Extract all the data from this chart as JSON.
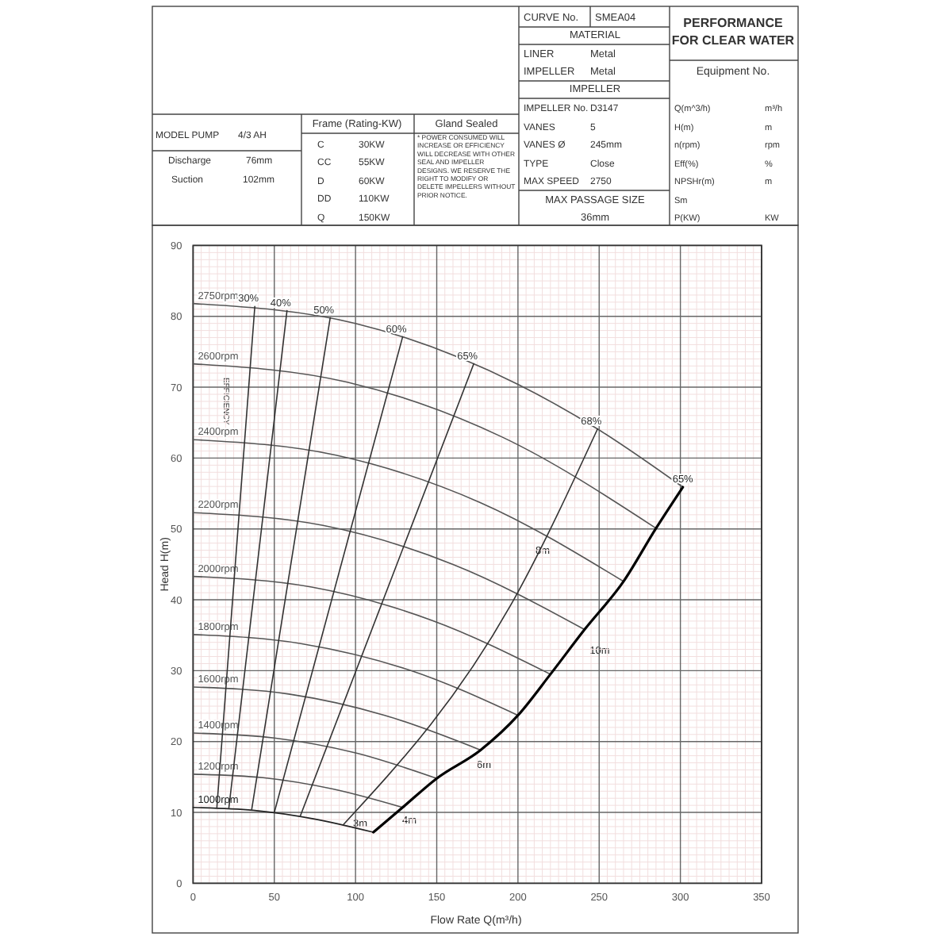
{
  "chart_data": {
    "type": "line",
    "title": "PERFORMANCE FOR CLEAR WATER",
    "xlabel": "Flow Rate Q(m³/h)",
    "ylabel": "Head H(m)",
    "xlim": [
      0,
      350
    ],
    "xticks": [
      0,
      50,
      100,
      150,
      200,
      250,
      300,
      350
    ],
    "ylim": [
      0,
      90
    ],
    "yticks": [
      0,
      10,
      20,
      30,
      40,
      50,
      60,
      70,
      80,
      90
    ],
    "grid": true,
    "series": [
      {
        "name": "2750rpm",
        "color": "#555555",
        "x": [
          0,
          100,
          200,
          249,
          301.5
        ],
        "values": [
          81.8,
          79,
          70.4,
          64.1,
          55.9
        ]
      },
      {
        "name": "2600rpm",
        "color": "#555555",
        "x": [
          0,
          95,
          190,
          285
        ],
        "values": [
          73.3,
          70.7,
          63,
          50.1
        ]
      },
      {
        "name": "2400rpm",
        "color": "#555555",
        "x": [
          0,
          88,
          177,
          265
        ],
        "values": [
          62.6,
          60.4,
          53.7,
          42.6
        ]
      },
      {
        "name": "2200rpm",
        "color": "#555555",
        "x": [
          0,
          80,
          160,
          241
        ],
        "values": [
          52.3,
          50.5,
          45,
          35.8
        ]
      },
      {
        "name": "2000rpm",
        "color": "#555555",
        "x": [
          0,
          73,
          147,
          220
        ],
        "values": [
          43.3,
          41.8,
          37.1,
          29.5
        ]
      },
      {
        "name": "1800rpm",
        "color": "#555555",
        "x": [
          0,
          67,
          133,
          200
        ],
        "values": [
          35.1,
          33.8,
          30.1,
          23.7
        ]
      },
      {
        "name": "1600rpm",
        "color": "#555555",
        "x": [
          0,
          59,
          118,
          177
        ],
        "values": [
          27.7,
          26.7,
          23.7,
          18.8
        ]
      },
      {
        "name": "1400rpm",
        "color": "#555555",
        "x": [
          0,
          50,
          100,
          150
        ],
        "values": [
          21.2,
          20.5,
          18.4,
          14.8
        ]
      },
      {
        "name": "1200rpm",
        "color": "#555555",
        "x": [
          0,
          43,
          86,
          129
        ],
        "values": [
          15.4,
          14.9,
          13.3,
          10.7
        ]
      },
      {
        "name": "1000rpm",
        "color": "#222222",
        "x": [
          0,
          37,
          74,
          111
        ],
        "values": [
          10.7,
          10.3,
          9.1,
          7.2
        ]
      },
      {
        "name": "30%",
        "color": "#333333",
        "x": [
          14.6,
          38
        ],
        "values": [
          10.6,
          81.4
        ]
      },
      {
        "name": "40%",
        "color": "#333333",
        "x": [
          22,
          57.8
        ],
        "values": [
          10.6,
          80.8
        ]
      },
      {
        "name": "50%",
        "color": "#333333",
        "x": [
          36,
          84.4
        ],
        "values": [
          10.3,
          79.8
        ]
      },
      {
        "name": "60%",
        "color": "#333333",
        "x": [
          50,
          129
        ],
        "values": [
          10,
          77.1
        ]
      },
      {
        "name": "65%",
        "color": "#333333",
        "x": [
          66,
          172.8
        ],
        "values": [
          9.5,
          73.3
        ]
      },
      {
        "name": "68%",
        "color": "#333333",
        "x": [
          92.6,
          199.8,
          249
        ],
        "values": [
          8.3,
          41,
          64.1
        ]
      },
      {
        "color": "#000000",
        "x": [
          111,
          129,
          150,
          177,
          200,
          220,
          241,
          265,
          285,
          301.5
        ],
        "values": [
          7.2,
          10.7,
          14.8,
          18.8,
          23.7,
          29.5,
          35.8,
          42.6,
          50.1,
          55.9
        ]
      }
    ],
    "annotations": [
      "CURVE No.",
      "SMEA04",
      "MATERIAL",
      "LINER",
      "Metal",
      "IMPELLER",
      "Metal",
      "IMPELLER",
      "IMPELLER No.",
      "D3147",
      "VANES",
      "5",
      "VANES Ø",
      "245mm",
      "TYPE",
      "Close",
      "MAX SPEED",
      "2750",
      "MAX PASSAGE SIZE",
      "36mm",
      "Equipment No.",
      "Q(m^3/h)",
      "m³/h",
      "H(m)",
      "m",
      "n(rpm)",
      "rpm",
      "Eff(%)",
      "%",
      "NPSHr(m)",
      "m",
      "Sm",
      "P(KW)",
      "KW",
      "MODEL PUMP",
      "4/3  AH",
      "Discharge",
      "76mm",
      "Suction",
      "102mm",
      "Frame (Rating-KW)",
      "C",
      "30KW",
      "CC",
      "55KW",
      "D",
      "60KW",
      "DD",
      "110KW",
      "Q",
      "150KW",
      "Gland Sealed",
      "* POWER CONSUMED WILL INCREASE OR EFFICIENCY WILL DECREASE WITH OTHER SEAL AND IMPELLER DESIGNS. WE RESERVE THE RIGHT TO MODIFY OR DELETE IMPELLERS WITHOUT PRIOR NOTICE.",
      "EFFICIENCY",
      {
        "text": "65%",
        "x": 301.5,
        "y": 55.9
      },
      "3m",
      "4m",
      "6m",
      "8m",
      "10m"
    ]
  }
}
